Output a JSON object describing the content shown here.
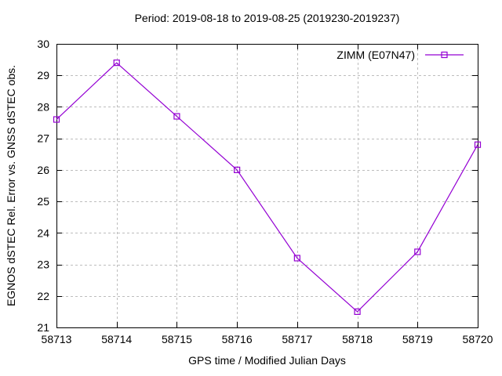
{
  "chart_data": {
    "type": "line",
    "title": "Period: 2019-08-18 to 2019-08-25 (2019230-2019237)",
    "xlabel": "GPS time / Modified Julian Days",
    "ylabel": "EGNOS dSTEC Rel. Error vs. GNSS dSTEC obs.",
    "x": [
      58713,
      58714,
      58715,
      58716,
      58717,
      58718,
      58719,
      58720
    ],
    "series": [
      {
        "name": "ZIMM (E07N47)",
        "values": [
          27.6,
          29.4,
          27.7,
          26.0,
          23.2,
          21.5,
          23.4,
          26.8
        ],
        "color": "#9400D3",
        "marker": "open-square"
      }
    ],
    "xlim": [
      58713,
      58720
    ],
    "ylim": [
      21,
      30
    ],
    "x_ticks": [
      58713,
      58714,
      58715,
      58716,
      58717,
      58718,
      58719,
      58720
    ],
    "y_ticks": [
      21,
      22,
      23,
      24,
      25,
      26,
      27,
      28,
      29,
      30
    ],
    "grid": true,
    "legend_position": "top-right-inside",
    "colors": {
      "series": "#9400D3",
      "grid": "#bdbdbd",
      "border": "#000000",
      "text": "#000000"
    }
  }
}
